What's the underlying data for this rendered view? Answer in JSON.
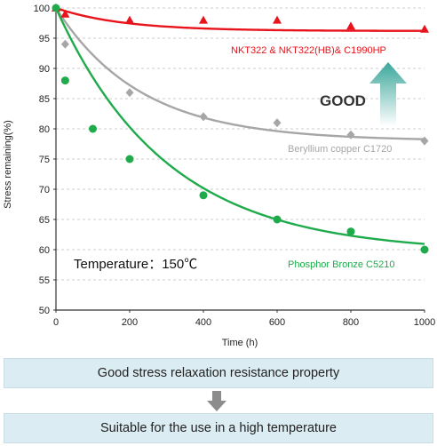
{
  "chart_data": {
    "type": "scatter",
    "xlabel": "Time (h)",
    "ylabel": "Stress remaining(%)",
    "xlim": [
      0,
      1000
    ],
    "ylim": [
      50,
      100
    ],
    "x_ticks": [
      0,
      200,
      400,
      600,
      800,
      1000
    ],
    "y_ticks": [
      50,
      55,
      60,
      65,
      70,
      75,
      80,
      85,
      90,
      95,
      100
    ],
    "grid": "horizontal dashed",
    "series": [
      {
        "name": "NKT322 & NKT322(HB)& C1990HP",
        "color": "#e8131b",
        "marker": "triangle",
        "x": [
          0,
          25,
          200,
          400,
          600,
          800,
          1000
        ],
        "y": [
          100,
          99,
          98,
          98,
          98,
          97,
          96.5
        ],
        "fit_final": 96.2,
        "fit_tau": 180
      },
      {
        "name": "Beryllium copper C1720",
        "color": "#a6a6a6",
        "marker": "diamond",
        "x": [
          0,
          25,
          200,
          400,
          600,
          800,
          1000
        ],
        "y": [
          100,
          94,
          86,
          82,
          81,
          79,
          78
        ],
        "fit_final": 78.0,
        "fit_tau": 230
      },
      {
        "name": "Phosphor Bronze C5210",
        "color": "#1fab4b",
        "marker": "circle",
        "x": [
          0,
          25,
          100,
          200,
          400,
          600,
          800,
          1000
        ],
        "y": [
          100,
          88,
          80,
          75,
          69,
          65,
          63,
          60
        ],
        "fit_final": 59.5,
        "fit_tau": 300
      }
    ],
    "annotations": {
      "good": "GOOD",
      "temperature": "Temperature：150℃"
    }
  },
  "boxes": {
    "top": "Good stress relaxation resistance property",
    "bottom": "Suitable for the use in a high temperature"
  },
  "colors": {
    "box_fill": "#dcecf3",
    "good_arrow": "#3aa79a",
    "down_arrow": "#8c8c8c"
  }
}
